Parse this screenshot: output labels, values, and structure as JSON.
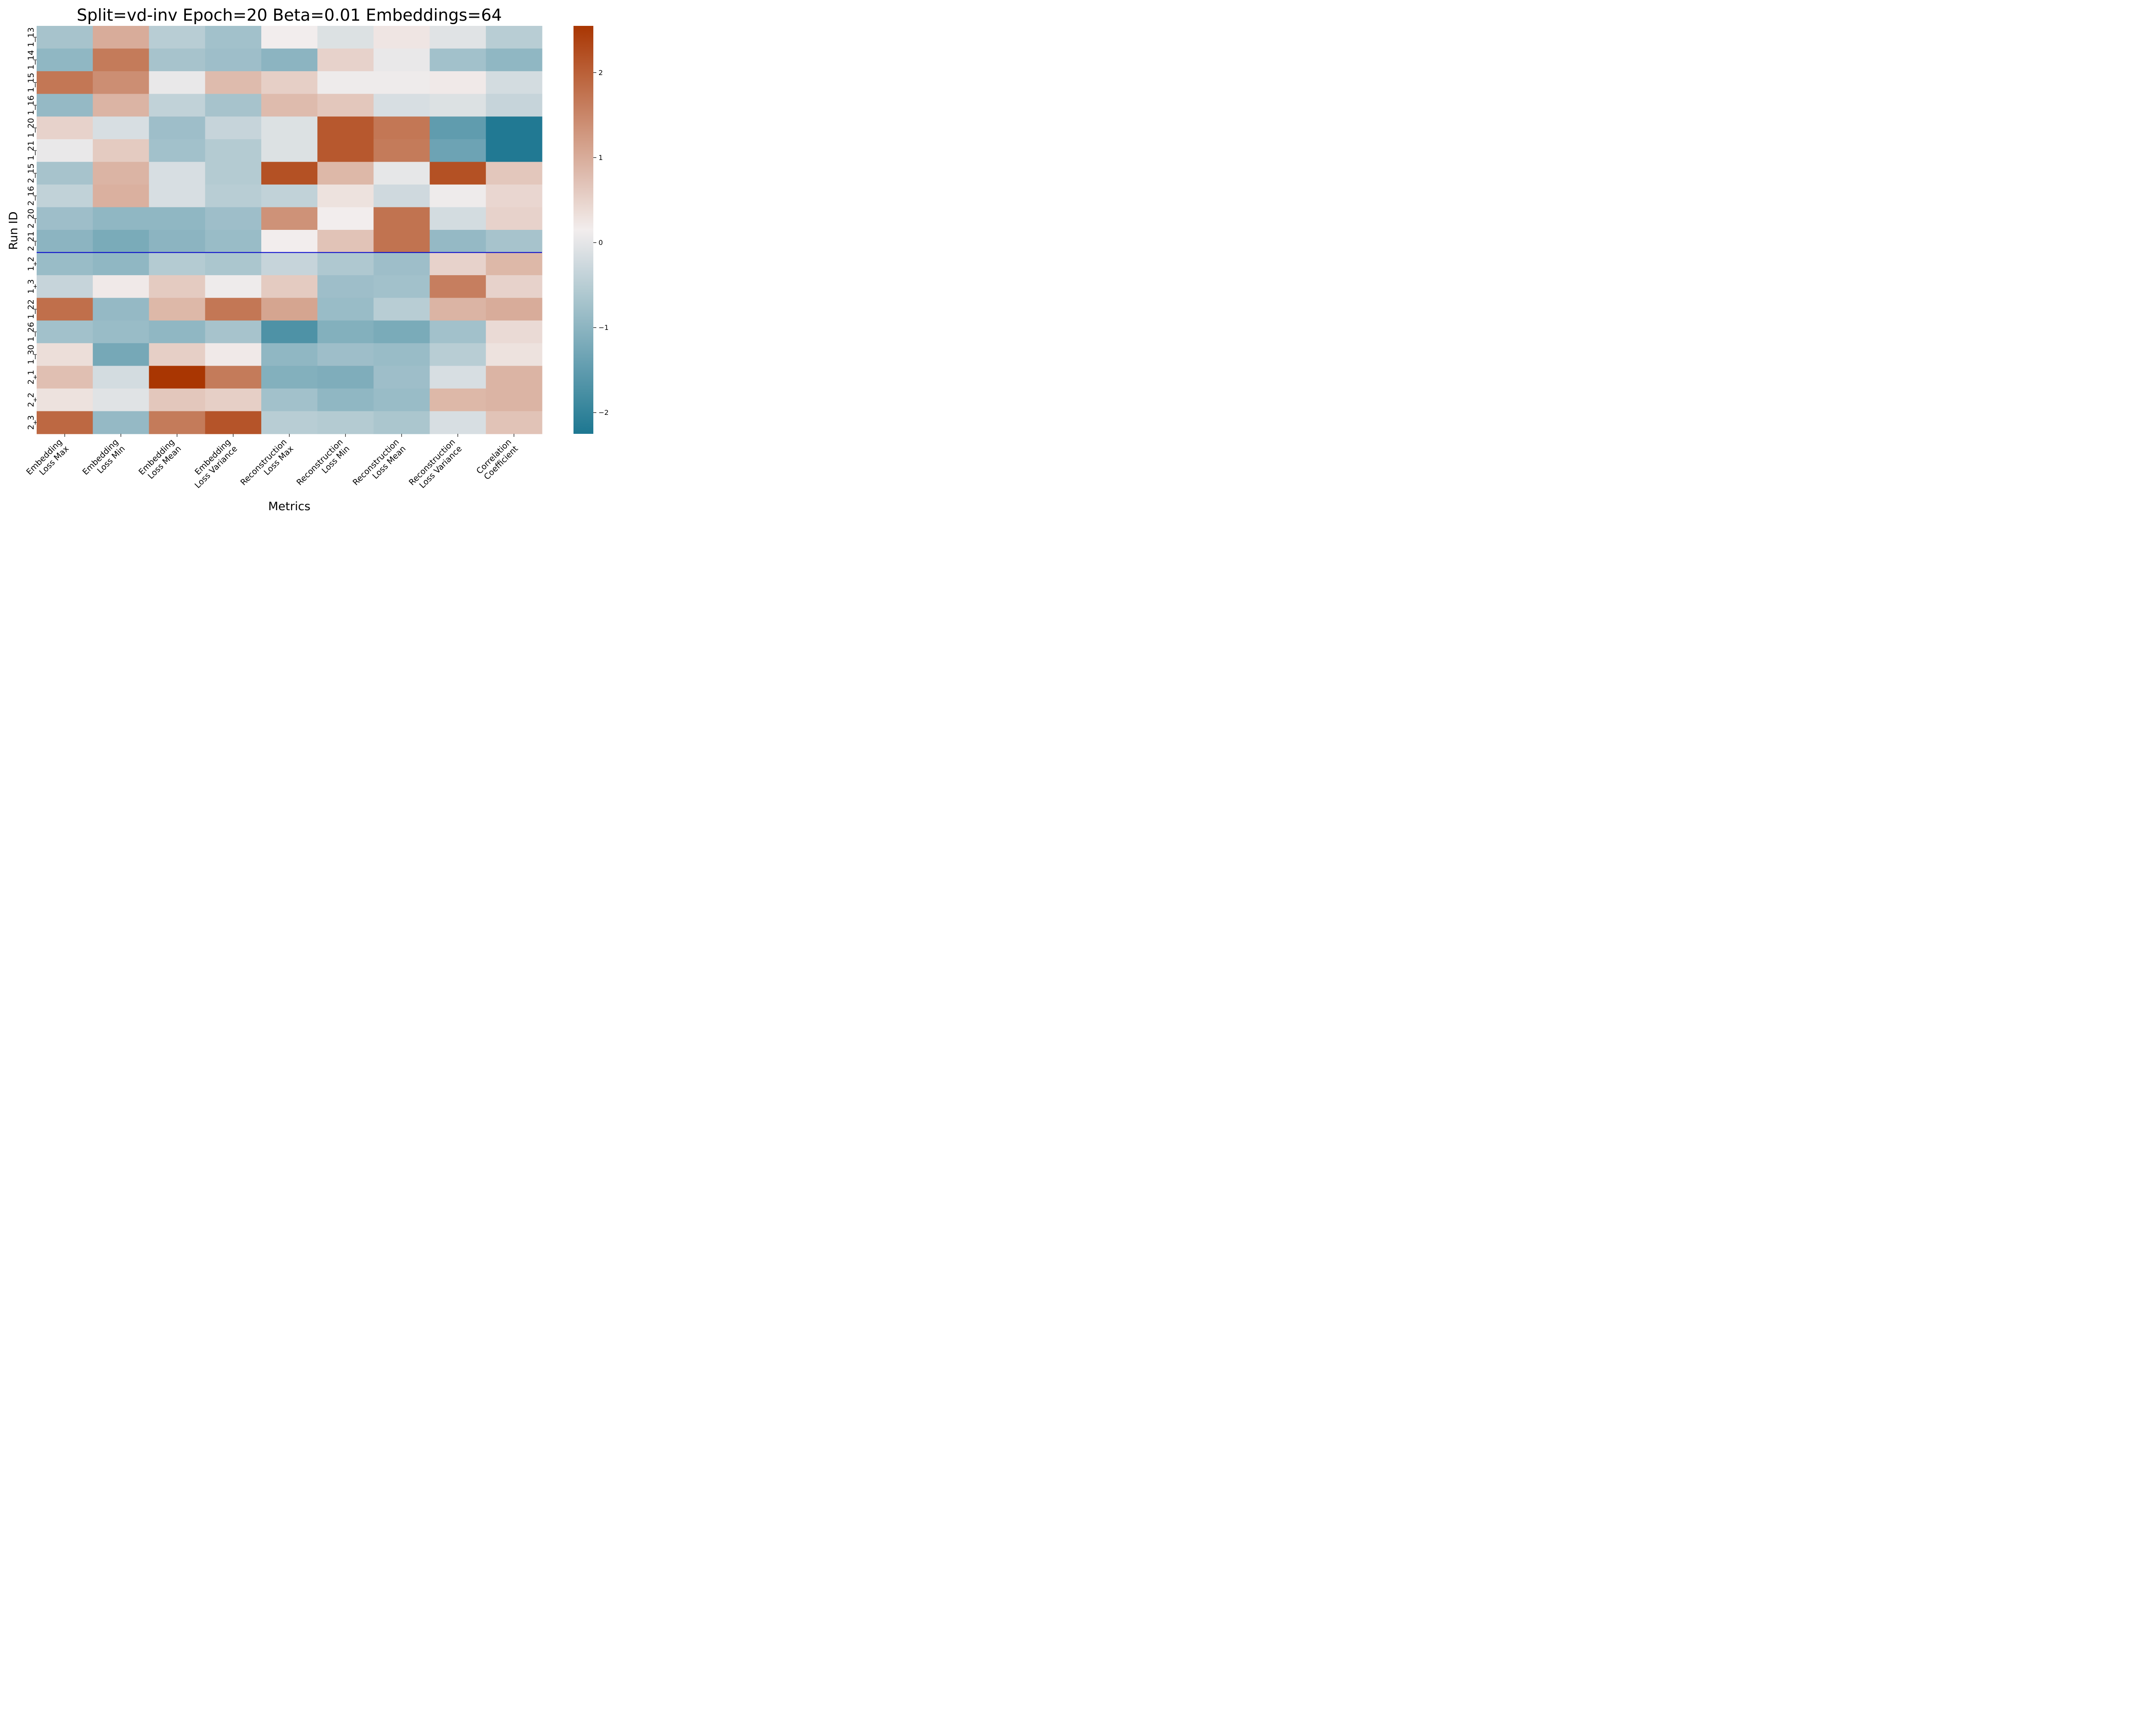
{
  "chart_data": {
    "type": "heatmap",
    "title": "Split=vd-inv Epoch=20 Beta=0.01 Embeddings=64",
    "xlabel": "Metrics",
    "ylabel": "Run ID",
    "x_categories": [
      "Embedding\nLoss Max",
      "Embedding\nLoss Min",
      "Embedding\nLoss Mean",
      "Embedding\nLoss Variance",
      "Reconstruction\nLoss Max",
      "Reconstruction\nLoss Min",
      "Reconstruction\nLoss Mean",
      "Reconstruction\nLoss Variance",
      "Correlation\nCoefficient"
    ],
    "y_categories": [
      "1_13",
      "1_14",
      "1_15",
      "1_16",
      "1_20",
      "1_21",
      "2_15",
      "2_16",
      "2_20",
      "2_21",
      "1_2",
      "1_3",
      "1_22",
      "1_26",
      "1_30",
      "2_1",
      "2_2",
      "2_3"
    ],
    "values": [
      [
        -0.7,
        1.0,
        -0.5,
        -0.75,
        0.15,
        -0.1,
        0.25,
        -0.05,
        -0.5
      ],
      [
        -0.95,
        1.65,
        -0.7,
        -0.8,
        -1.0,
        0.5,
        0.05,
        -0.75,
        -0.95
      ],
      [
        1.7,
        1.4,
        0.05,
        0.8,
        0.55,
        0.1,
        0.1,
        0.2,
        -0.2
      ],
      [
        -0.9,
        0.9,
        -0.4,
        -0.7,
        0.8,
        0.65,
        -0.15,
        -0.1,
        -0.35
      ],
      [
        0.5,
        -0.15,
        -0.8,
        -0.35,
        -0.1,
        2.1,
        1.7,
        -1.5,
        -2.2
      ],
      [
        0.05,
        0.6,
        -0.75,
        -0.55,
        -0.1,
        2.1,
        1.65,
        -1.35,
        -2.2
      ],
      [
        -0.7,
        0.9,
        -0.15,
        -0.55,
        2.2,
        0.85,
        0.02,
        2.2,
        0.65
      ],
      [
        -0.4,
        0.95,
        -0.15,
        -0.5,
        -0.4,
        0.3,
        -0.25,
        0.1,
        0.45
      ],
      [
        -0.8,
        -0.95,
        -0.95,
        -0.8,
        1.35,
        0.15,
        1.75,
        -0.2,
        0.5
      ],
      [
        -1.0,
        -1.2,
        -1.0,
        -0.85,
        0.15,
        0.7,
        1.75,
        -0.9,
        -0.7
      ],
      [
        -0.85,
        -0.95,
        -0.55,
        -0.65,
        -0.35,
        -0.6,
        -0.8,
        0.5,
        0.85
      ],
      [
        -0.35,
        0.2,
        0.6,
        0.1,
        0.6,
        -0.8,
        -0.75,
        1.6,
        0.5
      ],
      [
        1.8,
        -0.9,
        0.85,
        1.7,
        1.1,
        -0.85,
        -0.5,
        0.9,
        1.0
      ],
      [
        -0.75,
        -0.85,
        -0.95,
        -0.7,
        -1.7,
        -1.1,
        -1.2,
        -0.75,
        0.4
      ],
      [
        0.35,
        -1.25,
        0.55,
        0.2,
        -0.95,
        -0.8,
        -0.85,
        -0.5,
        0.3
      ],
      [
        0.75,
        -0.2,
        2.55,
        1.65,
        -1.1,
        -1.15,
        -0.8,
        -0.15,
        0.9
      ],
      [
        0.3,
        -0.05,
        0.65,
        0.55,
        -0.75,
        -0.95,
        -0.85,
        0.85,
        0.9
      ],
      [
        1.9,
        -0.9,
        1.65,
        2.15,
        -0.5,
        -0.55,
        -0.65,
        -0.15,
        0.7
      ]
    ],
    "vmin": -2.25,
    "vmax": 2.55,
    "colormap": {
      "low": "#1d7791",
      "mid": "#f2eded",
      "high": "#a93602"
    },
    "colorbar": {
      "ticks": [
        -2,
        -1,
        0,
        1,
        2
      ],
      "tick_labels": [
        "−2",
        "−1",
        "0",
        "1",
        "2"
      ]
    },
    "separator_after_row": "2_21",
    "separator_color": "#0000cc",
    "grid": false
  }
}
